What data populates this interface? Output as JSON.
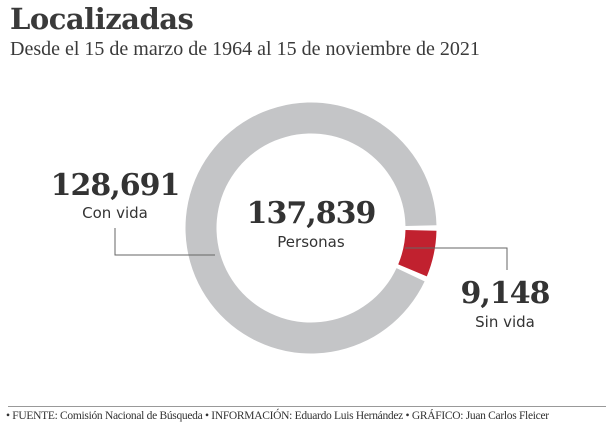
{
  "chart_data": {
    "type": "pie",
    "variant": "donut",
    "title": "Localizadas",
    "subtitle": "Desde el 15 de marzo de 1964 al 15 de noviembre de 2021",
    "total": {
      "value": "137,839",
      "label": "Personas"
    },
    "slices": [
      {
        "name": "Con vida",
        "value": 128691,
        "display": "128,691",
        "color": "#c4c5c7"
      },
      {
        "name": "Sin vida",
        "value": 9148,
        "display": "9,148",
        "color": "#c1212f"
      }
    ]
  },
  "footer": "• FUENTE: Comisión Nacional de Búsqueda • INFORMACIÓN: Eduardo Luis Hernández • GRÁFICO:  Juan Carlos Fleicer"
}
